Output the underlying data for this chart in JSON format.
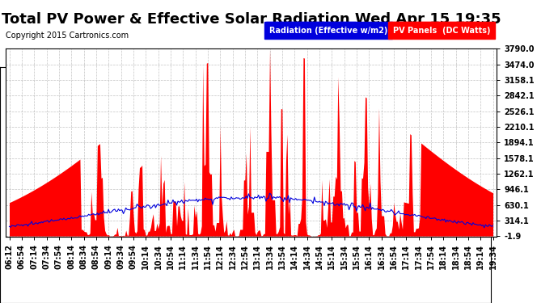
{
  "title": "Total PV Power & Effective Solar Radiation Wed Apr 15 19:35",
  "copyright": "Copyright 2015 Cartronics.com",
  "legend_labels": [
    "Radiation (Effective w/m2)",
    "PV Panels  (DC Watts)"
  ],
  "legend_colors": [
    "#0000dd",
    "#ff0000"
  ],
  "bg_color": "#ffffff",
  "plot_bg_color": "#ffffff",
  "grid_color": "#aaaaaa",
  "ymin": -1.9,
  "ymax": 3790.0,
  "yticks": [
    -1.9,
    314.1,
    630.1,
    946.1,
    1262.1,
    1578.1,
    1894.1,
    2210.1,
    2526.1,
    2842.1,
    3158.1,
    3474.0,
    3790.0
  ],
  "time_labels": [
    "06:12",
    "06:54",
    "07:14",
    "07:34",
    "07:54",
    "08:14",
    "08:34",
    "08:54",
    "09:14",
    "09:34",
    "09:54",
    "10:14",
    "10:34",
    "10:54",
    "11:14",
    "11:34",
    "11:54",
    "12:14",
    "12:34",
    "12:54",
    "13:14",
    "13:34",
    "13:54",
    "14:14",
    "14:34",
    "14:54",
    "15:14",
    "15:34",
    "15:54",
    "16:14",
    "16:34",
    "16:54",
    "17:14",
    "17:34",
    "17:54",
    "18:14",
    "18:34",
    "18:54",
    "19:14",
    "19:34"
  ],
  "pv_color": "#ff0000",
  "rad_color": "#0000dd",
  "title_fontsize": 13,
  "tick_fontsize": 7,
  "copyright_fontsize": 7
}
